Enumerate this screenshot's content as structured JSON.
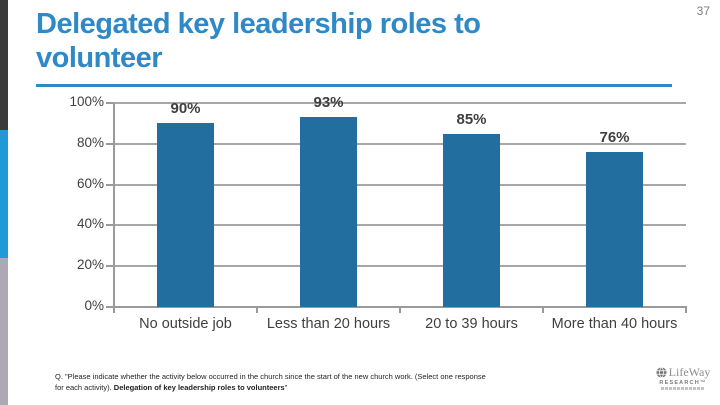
{
  "page": {
    "number": "37"
  },
  "title": {
    "line1": "Delegated key leadership roles to",
    "line2": "volunteer"
  },
  "colors": {
    "title_blue": "#2E89C6",
    "bar_blue": "#226E9E",
    "stripe_dark": "#3B3B3B",
    "stripe_blue": "#1F9AD6",
    "stripe_gray": "#ACA8B4",
    "gridline_gray": "#A7A7A7",
    "axis_gray": "#9A9A9A",
    "label_dark": "#3F3F3F"
  },
  "chart_data": {
    "type": "bar",
    "title": "Delegated key leadership roles to volunteer",
    "categories": [
      "No outside job",
      "Less than 20 hours",
      "20 to 39 hours",
      "More than 40 hours"
    ],
    "values": [
      90,
      93,
      85,
      76
    ],
    "value_labels": [
      "90%",
      "93%",
      "85%",
      "76%"
    ],
    "xlabel": "",
    "ylabel": "",
    "ylim": [
      0,
      100
    ],
    "yticks": [
      0,
      20,
      40,
      60,
      80,
      100
    ],
    "ytick_labels": [
      "0%",
      "20%",
      "40%",
      "60%",
      "80%",
      "100%"
    ],
    "grid": true,
    "legend": "none",
    "bar_color": "#226E9E"
  },
  "footnote": {
    "line1": "Q. \"Please indicate whether the activity below occurred in the church since the start of the new church work. (Select one response",
    "line2_prefix": "for each activity). ",
    "line2_bold": "Delegation of key leadership roles to volunteers",
    "line2_suffix": "\""
  },
  "logo": {
    "name": "LifeWay",
    "sub": "RESEARCH™"
  }
}
